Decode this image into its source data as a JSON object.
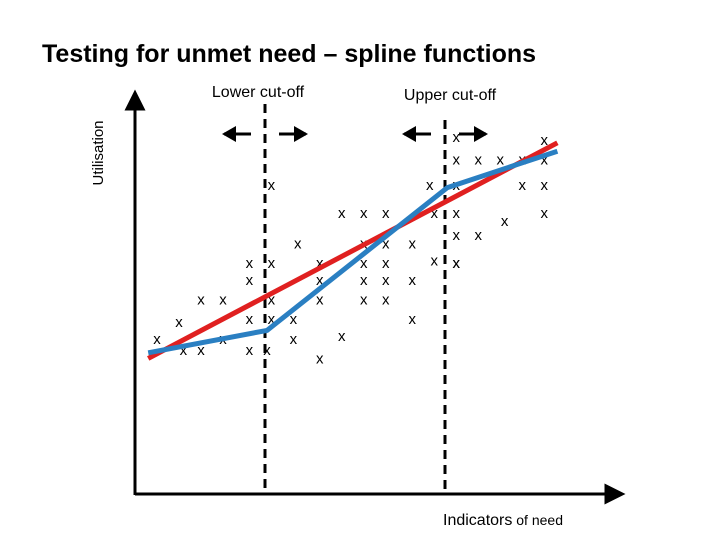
{
  "title": "Testing for unmet need – spline functions",
  "ylabel": "Utilisation",
  "xlabel_main": "Indicators",
  "xlabel_suffix": " of need",
  "lower_label": "Lower cut-off",
  "upper_label": "Upper cut-off",
  "marker": "x",
  "colors": {
    "fit_line": "#e02020",
    "spline": "#2a7fc2",
    "axis": "#000000"
  },
  "chart_data": {
    "type": "scatter",
    "xlim": [
      0,
      100
    ],
    "ylim": [
      0,
      100
    ],
    "cutoffs": {
      "lower": 30,
      "upper": 71
    },
    "points": [
      [
        5,
        29
      ],
      [
        10,
        35
      ],
      [
        11,
        25
      ],
      [
        15,
        25
      ],
      [
        15,
        43
      ],
      [
        20,
        43
      ],
      [
        20,
        29
      ],
      [
        26,
        50
      ],
      [
        26,
        56
      ],
      [
        26,
        36
      ],
      [
        26,
        25
      ],
      [
        30,
        25
      ],
      [
        31,
        56
      ],
      [
        31,
        43
      ],
      [
        31,
        36
      ],
      [
        31,
        84
      ],
      [
        36,
        36
      ],
      [
        36,
        29
      ],
      [
        37,
        63
      ],
      [
        42,
        22
      ],
      [
        42,
        56
      ],
      [
        42,
        50
      ],
      [
        42,
        43
      ],
      [
        47,
        74
      ],
      [
        47,
        30
      ],
      [
        52,
        43
      ],
      [
        52,
        50
      ],
      [
        52,
        56
      ],
      [
        52,
        63
      ],
      [
        52,
        74
      ],
      [
        57,
        56
      ],
      [
        57,
        63
      ],
      [
        57,
        74
      ],
      [
        57,
        50
      ],
      [
        57,
        43
      ],
      [
        63,
        63
      ],
      [
        63,
        50
      ],
      [
        63,
        36
      ],
      [
        67,
        84
      ],
      [
        68,
        74
      ],
      [
        68,
        57
      ],
      [
        73,
        56
      ],
      [
        73,
        56
      ],
      [
        73,
        74
      ],
      [
        73,
        84
      ],
      [
        73,
        66
      ],
      [
        78,
        66
      ],
      [
        73,
        101
      ],
      [
        73,
        93
      ],
      [
        78,
        93
      ],
      [
        83,
        93
      ],
      [
        84,
        71
      ],
      [
        88,
        93
      ],
      [
        93,
        93
      ],
      [
        93,
        74
      ],
      [
        93,
        100
      ],
      [
        88,
        84
      ],
      [
        93,
        84
      ]
    ],
    "straight_line": [
      [
        3,
        22
      ],
      [
        96,
        99
      ]
    ],
    "spline": [
      [
        3,
        24
      ],
      [
        30,
        32
      ],
      [
        71,
        83
      ],
      [
        96,
        96
      ]
    ]
  }
}
